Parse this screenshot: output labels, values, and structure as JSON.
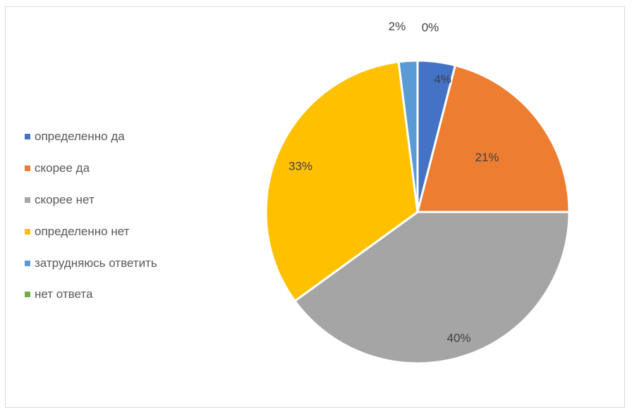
{
  "chart_data": {
    "type": "pie",
    "categories": [
      "определенно да",
      "скорее да",
      "скорее нет",
      "определенно нет",
      "затрудняюсь ответить",
      "нет ответа"
    ],
    "values": [
      4,
      21,
      40,
      33,
      2,
      0
    ],
    "labels": [
      "4%",
      "21%",
      "40%",
      "33%",
      "2%",
      "0%"
    ],
    "colors": [
      "#4472C4",
      "#ED7D31",
      "#A5A5A5",
      "#FFC000",
      "#5B9BD5",
      "#70AD47"
    ],
    "legend": "left"
  }
}
